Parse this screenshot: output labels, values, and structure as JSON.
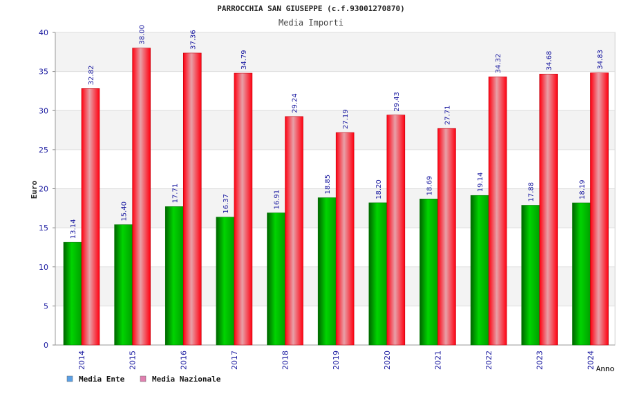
{
  "chart_data": {
    "type": "bar",
    "title": "PARROCCHIA SAN GIUSEPPE (c.f.93001270870)",
    "subtitle": "Media Importi",
    "xlabel": "Anno",
    "ylabel": "Euro",
    "ylim": [
      0,
      40
    ],
    "yticks": [
      0,
      5,
      10,
      15,
      20,
      25,
      30,
      35,
      40
    ],
    "grid": true,
    "legend_position": "bottom-left",
    "categories": [
      "2014",
      "2015",
      "2016",
      "2017",
      "2018",
      "2019",
      "2020",
      "2021",
      "2022",
      "2023",
      "2024"
    ],
    "series": [
      {
        "name": "Media Ente",
        "color": "#00c000",
        "legend_color": "#5aa0e6",
        "values": [
          13.14,
          15.4,
          17.71,
          16.37,
          16.91,
          18.85,
          18.2,
          18.69,
          19.14,
          17.88,
          18.19
        ],
        "labels": [
          "13.14",
          "15.40",
          "17.71",
          "16.37",
          "16.91",
          "18.85",
          "18.20",
          "18.69",
          "19.14",
          "17.88",
          "18.19"
        ]
      },
      {
        "name": "Media Nazionale",
        "color": "#ee1122",
        "legend_color": "#e080b0",
        "values": [
          32.82,
          38.0,
          37.36,
          34.79,
          29.24,
          27.19,
          29.43,
          27.71,
          34.32,
          34.68,
          34.83
        ],
        "labels": [
          "32.82",
          "38.00",
          "37.36",
          "34.79",
          "29.24",
          "27.19",
          "29.43",
          "27.71",
          "34.32",
          "34.68",
          "34.83"
        ]
      }
    ]
  }
}
